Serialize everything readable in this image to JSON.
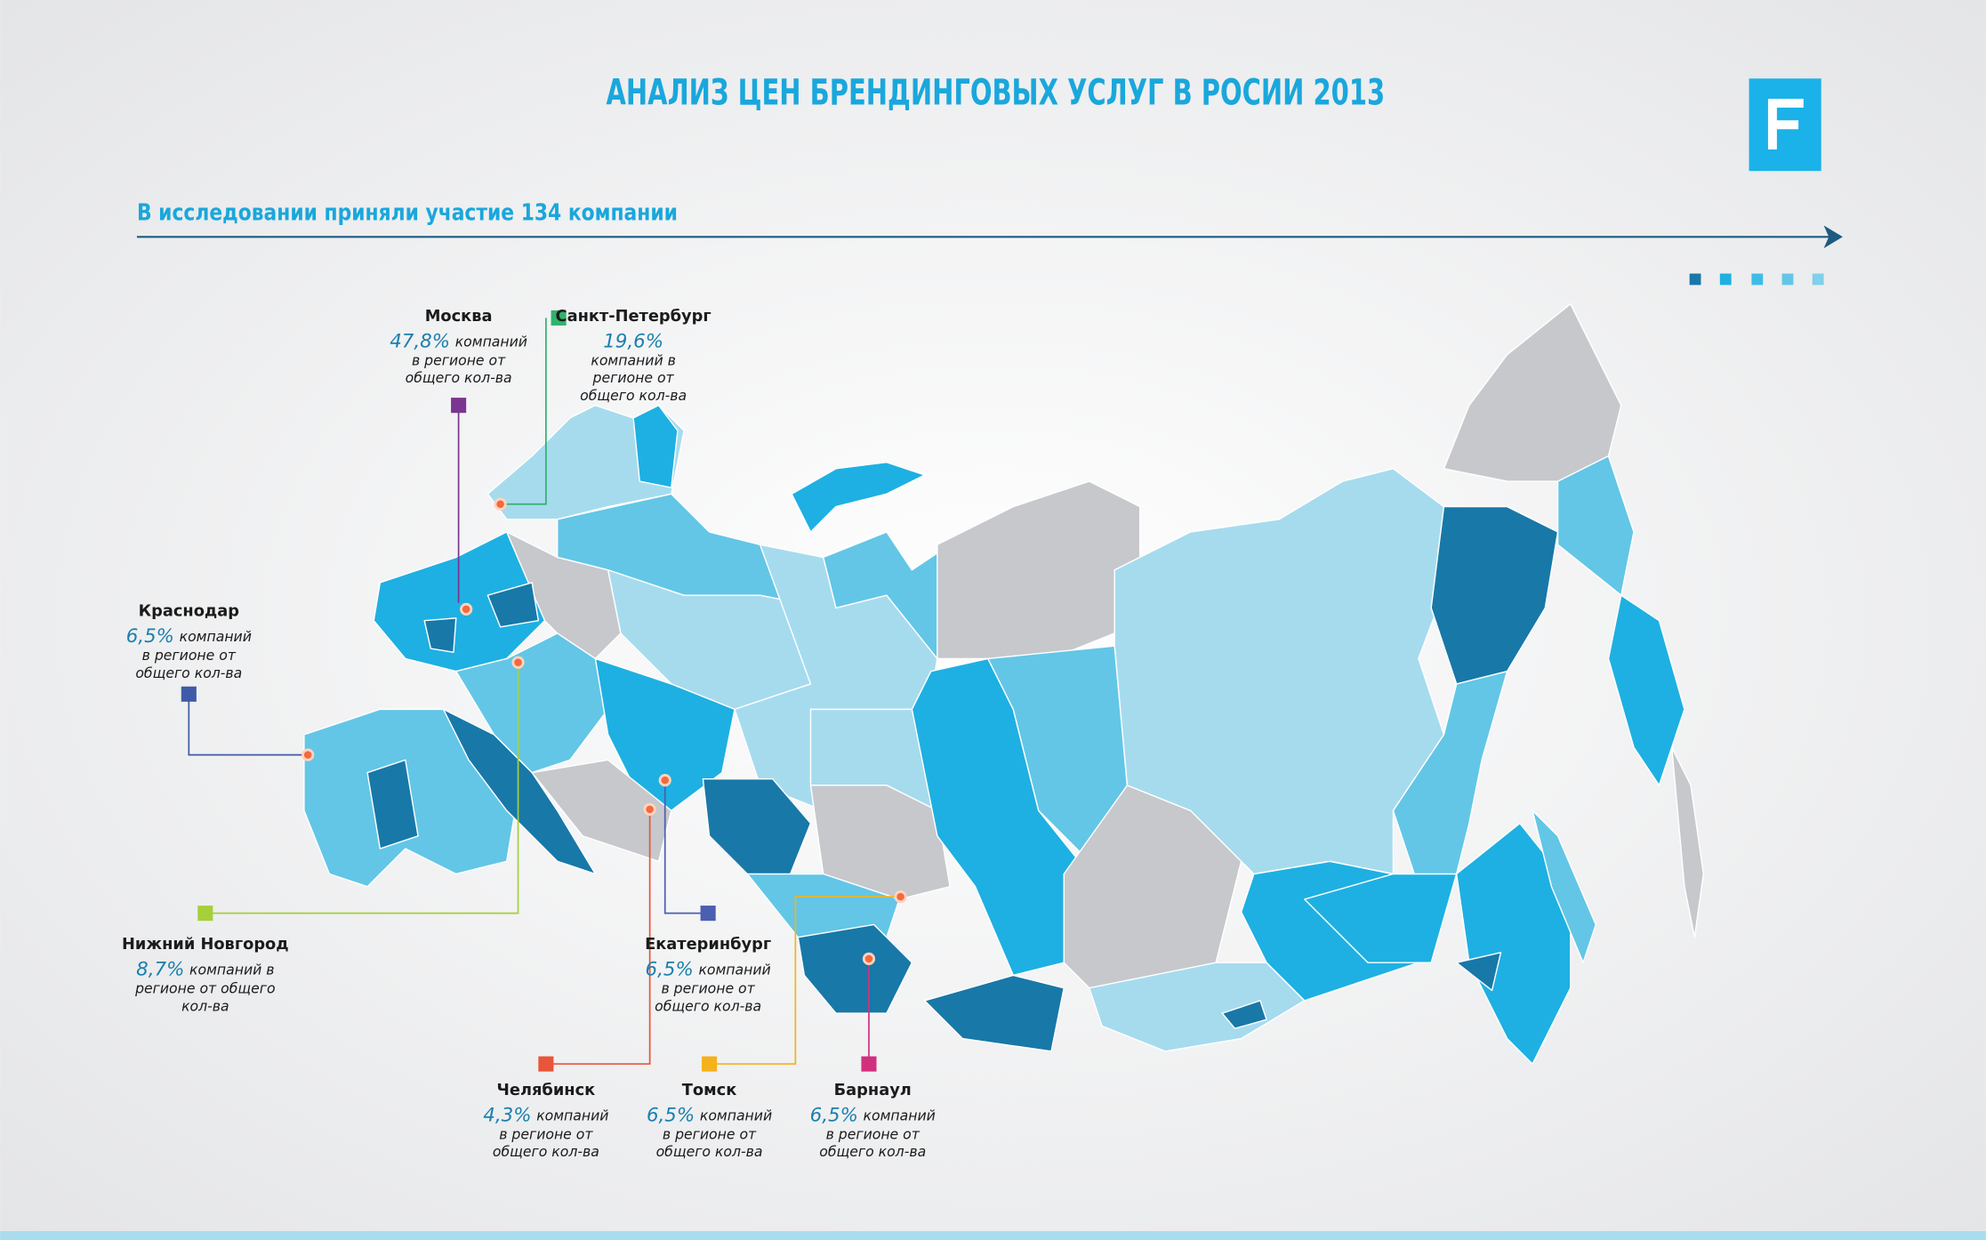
{
  "header": {
    "title": "АНАЛИЗ ЦЕН БРЕНДИНГОВЫХ УСЛУГ В РОСИИ 2013",
    "subtitle": "В исследовании приняли участие 134 компании"
  },
  "cities": [
    {
      "name": "Москва",
      "share": "47,8%",
      "share_note": "компаний",
      "note_lines": [
        "в регионе от",
        "общего кол-ва"
      ],
      "color": "#7b3590"
    },
    {
      "name": "Санкт-Петербург",
      "share": "19,6%",
      "note_lines": [
        "компаний в",
        "регионе от",
        "общего кол-ва"
      ],
      "color": "#2fb36b"
    },
    {
      "name": "Краснодар",
      "share": "6,5%",
      "share_note": "компаний",
      "note_lines": [
        "в регионе от",
        "общего кол-ва"
      ],
      "color": "#3f5aa8"
    },
    {
      "name": "Нижний Новгород",
      "share": "8,7%",
      "share_note": "компаний в",
      "note_lines": [
        "регионе от общего",
        "кол-ва"
      ],
      "color": "#a6cf3a"
    },
    {
      "name": "Екатеринбург",
      "share": "6,5%",
      "share_note": "компаний",
      "note_lines": [
        "в регионе от",
        "общего кол-ва"
      ],
      "color": "#4a5fb0"
    },
    {
      "name": "Челябинск",
      "share": "4,3%",
      "share_note": "компаний",
      "note_lines": [
        "в регионе от",
        "общего кол-ва"
      ],
      "color": "#e8553a"
    },
    {
      "name": "Томск",
      "share": "6,5%",
      "share_note": "компаний",
      "note_lines": [
        "в регионе от",
        "общего кол-ва"
      ],
      "color": "#f4b21b"
    },
    {
      "name": "Барнаул",
      "share": "6,5%",
      "share_note": "компаний",
      "note_lines": [
        "в регионе от",
        "общего кол-ва"
      ],
      "color": "#d32f7f"
    }
  ]
}
